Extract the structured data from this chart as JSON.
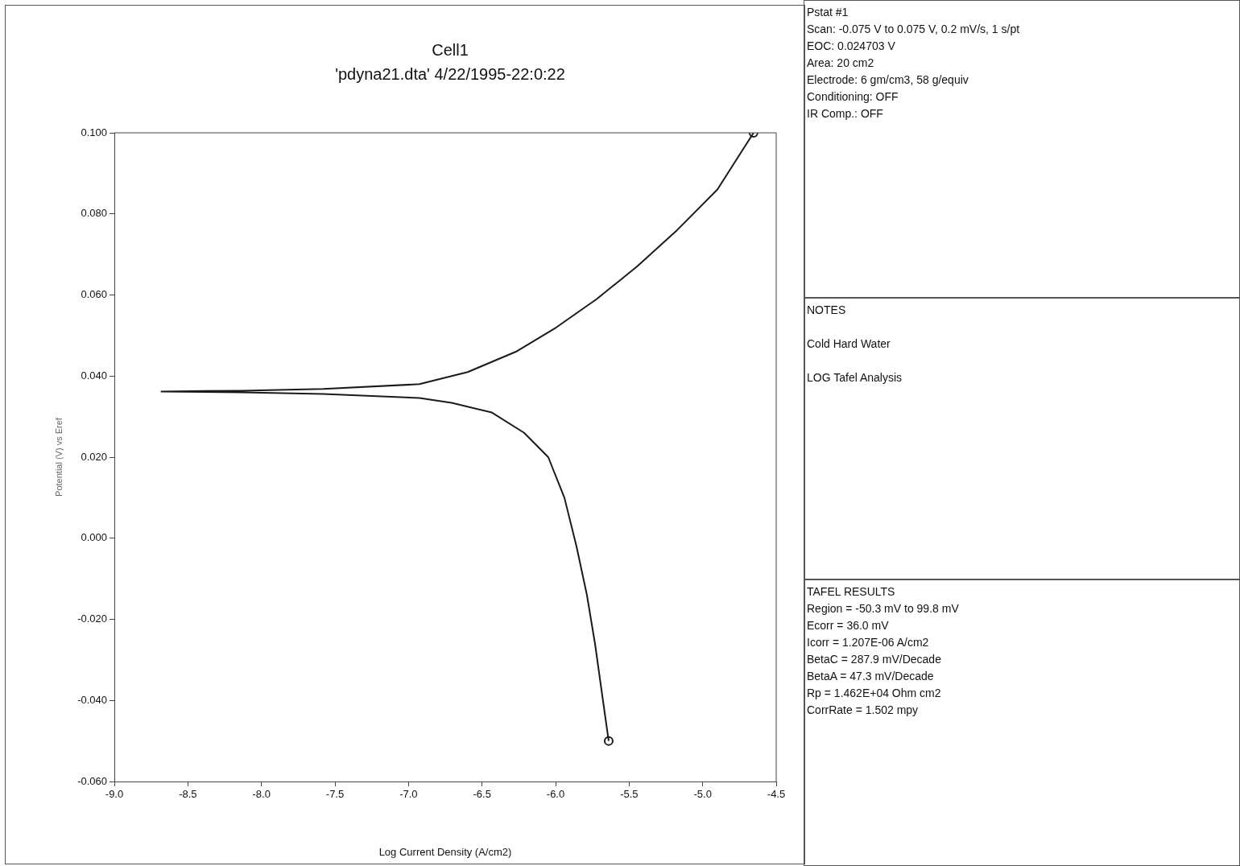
{
  "chart_data": {
    "type": "line",
    "title": "Cell1",
    "subtitle": "'pdyna21.dta' 4/22/1995-22:0:22",
    "xlabel": "Log Current Density (A/cm2)",
    "ylabel": "Potential (V) vs Eref",
    "xlim": [
      -9.0,
      -4.5
    ],
    "xticks": [
      {
        "value": -9,
        "label": "-9.0"
      },
      {
        "value": -8.5,
        "label": "-8.5"
      },
      {
        "value": -8,
        "label": "-8.0"
      },
      {
        "value": -7.5,
        "label": "-7.5"
      },
      {
        "value": -7,
        "label": "-7.0"
      },
      {
        "value": -6.5,
        "label": "-6.5"
      },
      {
        "value": -6,
        "label": "-6.0"
      },
      {
        "value": -5.5,
        "label": "-5.5"
      },
      {
        "value": -5,
        "label": "-5.0"
      },
      {
        "value": -4.5,
        "label": "-4.5"
      }
    ],
    "ylim": [
      -0.06,
      0.1
    ],
    "yticks": [
      {
        "value": -0.06,
        "label": "-0.060"
      },
      {
        "value": -0.04,
        "label": "-0.040"
      },
      {
        "value": -0.02,
        "label": "-0.020"
      },
      {
        "value": 0,
        "label": "0.000"
      },
      {
        "value": 0.02,
        "label": "0.020"
      },
      {
        "value": 0.04,
        "label": "0.040"
      },
      {
        "value": 0.06,
        "label": "0.060"
      },
      {
        "value": 0.08,
        "label": "0.080"
      },
      {
        "value": 0.1,
        "label": "0.100"
      }
    ],
    "grid": false,
    "legend": false,
    "series": [
      {
        "color": "#1a1a1a",
        "marker": "none",
        "x": [
          -5.639,
          -5.678,
          -5.732,
          -5.787,
          -5.858,
          -5.94,
          -6.05,
          -6.214,
          -6.433,
          -6.707,
          -6.926,
          -7.58,
          -8.13,
          -8.68,
          -8.13,
          -7.58,
          -6.926,
          -6.597,
          -6.27,
          -5.995,
          -5.72,
          -5.447,
          -5.174,
          -4.9,
          -4.654
        ],
        "values": [
          -0.05,
          -0.04,
          -0.026,
          -0.014,
          -0.002,
          0.01,
          0.02,
          0.026,
          0.031,
          0.0334,
          0.0346,
          0.0356,
          0.036,
          0.0362,
          0.0364,
          0.0368,
          0.038,
          0.041,
          0.046,
          0.052,
          0.059,
          0.067,
          0.076,
          0.086,
          0.1
        ]
      },
      {
        "type": "scatter",
        "color": "#1a1a1a",
        "marker": "circle",
        "x": [
          -5.639,
          -4.654
        ],
        "values": [
          -0.05,
          0.1
        ]
      }
    ],
    "annotations": [
      "Pstat #1\nScan: -0.075 V to 0.075 V, 0.2 mV/s, 1 s/pt\nEOC: 0.024703 V\nArea: 20 cm2\nElectrode: 6 gm/cm3, 58 g/equiv\nConditioning: OFF\nIR Comp.: OFF",
      "NOTES\n\nCold Hard Water\n\nLOG Tafel Analysis",
      "TAFEL RESULTS\nRegion = -50.3 mV to 99.8 mV\nEcorr = 36.0 mV\nIcorr = 1.207E-06 A/cm2\nBetaC = 287.9 mV/Decade\nBetaA = 47.3 mV/Decade\nRp = 1.462E+04 Ohm cm2\nCorrRate = 1.502 mpy"
    ]
  }
}
